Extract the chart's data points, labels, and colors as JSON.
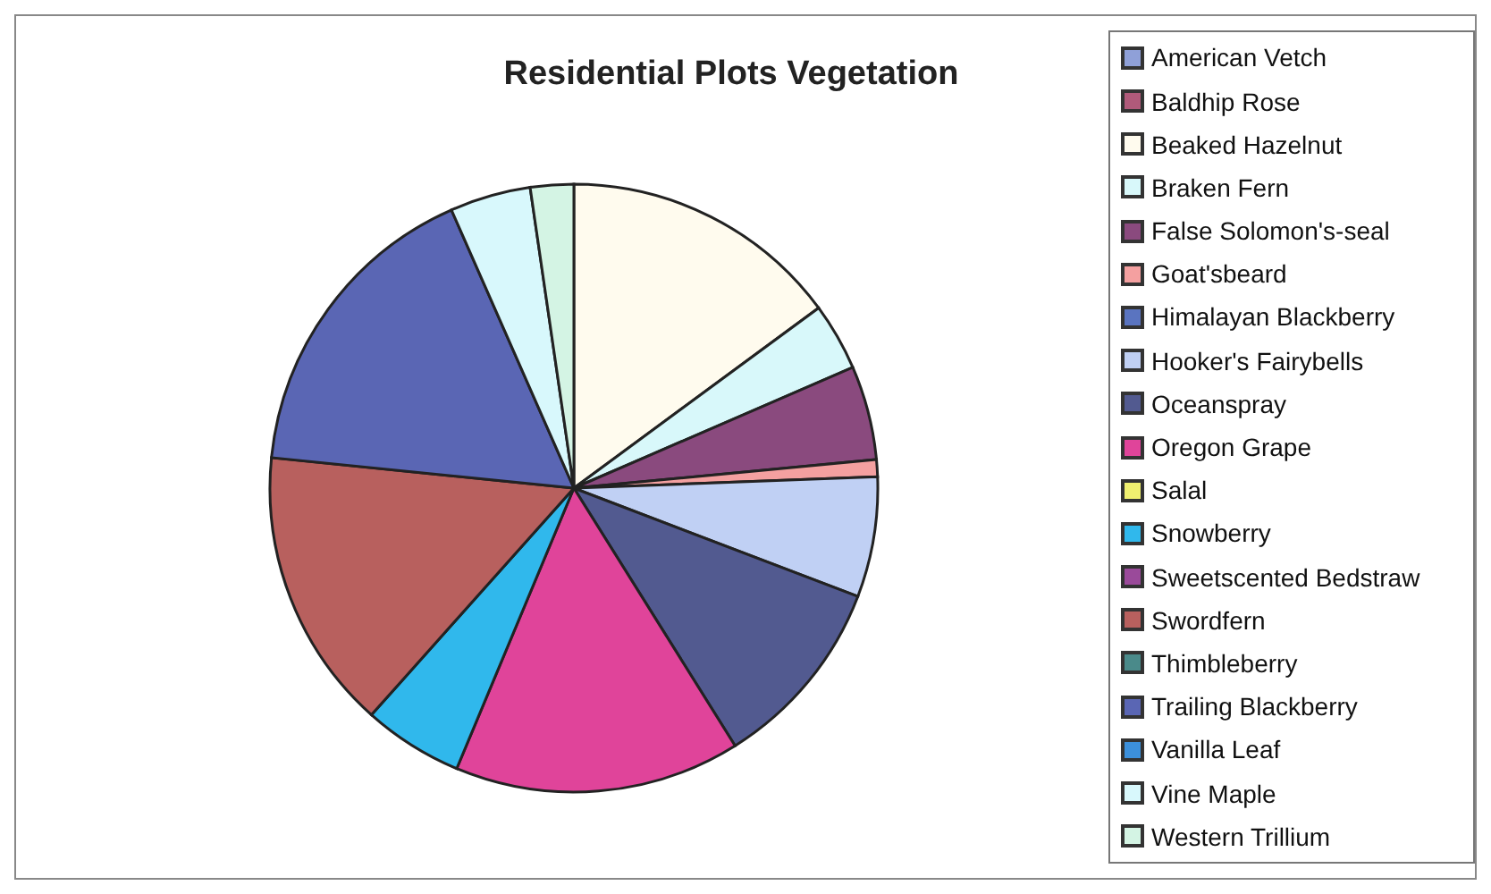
{
  "chart_data": {
    "type": "pie",
    "title": "Residential Plots Vegetation",
    "legend": "right",
    "categories": [
      "American Vetch",
      "Baldhip Rose",
      "Beaked Hazelnut",
      "Braken Fern",
      "False Solomon's-seal",
      "Goat'sbeard",
      "Himalayan Blackberry",
      "Hooker's Fairybells",
      "Oceanspray",
      "Oregon Grape",
      "Salal",
      "Snowberry",
      "Sweetscented Bedstraw",
      "Swordfern",
      "Thimbleberry",
      "Trailing Blackberry",
      "Vanilla Leaf",
      "Vine Maple",
      "Western Trillium"
    ],
    "values": [
      0,
      0,
      14.9,
      3.6,
      5.0,
      0.9,
      0,
      6.4,
      10.3,
      15.2,
      0,
      5.3,
      0,
      15.0,
      0,
      16.8,
      0,
      4.3,
      2.3
    ],
    "colors": [
      "#8fa0d8",
      "#b05a7a",
      "#fffbee",
      "#d8f8fa",
      "#8a4a7e",
      "#f4a0a0",
      "#5a74c0",
      "#c0d0f4",
      "#525a90",
      "#e0449a",
      "#f0f070",
      "#30b8ec",
      "#9a4a9a",
      "#b8605e",
      "#4a8a8a",
      "#5a66b4",
      "#3c90dc",
      "#d8f8fc",
      "#d4f4e4"
    ]
  }
}
